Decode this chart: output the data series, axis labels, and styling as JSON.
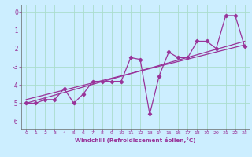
{
  "title": "",
  "xlabel": "Windchill (Refroidissement éolien,°C)",
  "ylabel": "",
  "background_color": "#cceeff",
  "line_color": "#993399",
  "grid_color": "#aaddcc",
  "xlim": [
    -0.5,
    23.5
  ],
  "ylim": [
    -6.4,
    0.4
  ],
  "xticks": [
    0,
    1,
    2,
    3,
    4,
    5,
    6,
    7,
    8,
    9,
    10,
    11,
    12,
    13,
    14,
    15,
    16,
    17,
    18,
    19,
    20,
    21,
    22,
    23
  ],
  "yticks": [
    0,
    -1,
    -2,
    -3,
    -4,
    -5,
    -6
  ],
  "line1_x": [
    0,
    1,
    2,
    3,
    4,
    5,
    6,
    7,
    8,
    9,
    10,
    11,
    12,
    13,
    14,
    15,
    16,
    17,
    18,
    19,
    20,
    21,
    22,
    23
  ],
  "line1_y": [
    -5.0,
    -5.0,
    -4.8,
    -4.8,
    -4.2,
    -5.0,
    -4.5,
    -3.8,
    -3.8,
    -3.8,
    -3.8,
    -2.5,
    -2.6,
    -5.6,
    -3.5,
    -2.2,
    -2.5,
    -2.5,
    -1.6,
    -1.6,
    -2.0,
    -0.2,
    -0.2,
    -1.9
  ],
  "line2_x": [
    0,
    23
  ],
  "line2_y": [
    -5.0,
    -1.6
  ],
  "line3_x": [
    0,
    23
  ],
  "line3_y": [
    -4.8,
    -1.8
  ]
}
